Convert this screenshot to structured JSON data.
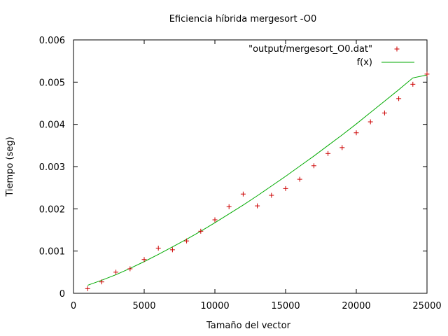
{
  "chart_data": {
    "type": "scatter",
    "title": "Eficiencia híbrida mergesort -O0",
    "xlabel": "Tamaño del vector",
    "ylabel": "Tiempo (seg)",
    "xlim": [
      0,
      25000
    ],
    "ylim": [
      0,
      0.006
    ],
    "xticks": [
      0,
      5000,
      10000,
      15000,
      20000,
      25000
    ],
    "xtick_labels": [
      "0",
      "5000",
      "10000",
      "15000",
      "20000",
      "25000"
    ],
    "yticks": [
      0,
      0.001,
      0.002,
      0.003,
      0.004,
      0.005,
      0.006
    ],
    "ytick_labels": [
      "0",
      "0.001",
      "0.002",
      "0.003",
      "0.004",
      "0.005",
      "0.006"
    ],
    "grid": false,
    "legend_position": "top-right",
    "series": [
      {
        "name": "\"output/mergesort_O0.dat\"",
        "kind": "points",
        "marker": "plus",
        "color": "#cc0000",
        "x": [
          1000,
          2000,
          3000,
          4000,
          5000,
          6000,
          7000,
          8000,
          9000,
          10000,
          11000,
          12000,
          13000,
          14000,
          15000,
          16000,
          17000,
          18000,
          19000,
          20000,
          21000,
          22000,
          23000,
          24000,
          25000
        ],
        "y": [
          0.00011,
          0.00027,
          0.0005,
          0.00058,
          0.0008,
          0.00107,
          0.00103,
          0.00124,
          0.00147,
          0.00174,
          0.00205,
          0.00235,
          0.00207,
          0.00232,
          0.00248,
          0.0027,
          0.00302,
          0.00331,
          0.00345,
          0.0038,
          0.00406,
          0.00427,
          0.00461,
          0.00495,
          0.00519
        ]
      },
      {
        "name": "f(x)",
        "kind": "line",
        "color": "#00aa00",
        "x": [
          1000,
          2000,
          3000,
          4000,
          5000,
          6000,
          7000,
          8000,
          9000,
          10000,
          11000,
          12000,
          13000,
          14000,
          15000,
          16000,
          17000,
          18000,
          19000,
          20000,
          21000,
          22000,
          23000,
          24000,
          25000
        ],
        "y": [
          0.00019,
          0.00031,
          0.00044,
          0.00059,
          0.00075,
          0.00092,
          0.0011,
          0.00128,
          0.00147,
          0.00167,
          0.00188,
          0.00209,
          0.00231,
          0.00254,
          0.00277,
          0.00301,
          0.00325,
          0.0035,
          0.00375,
          0.00401,
          0.00428,
          0.00455,
          0.00482,
          0.0051,
          0.00517
        ]
      }
    ]
  }
}
